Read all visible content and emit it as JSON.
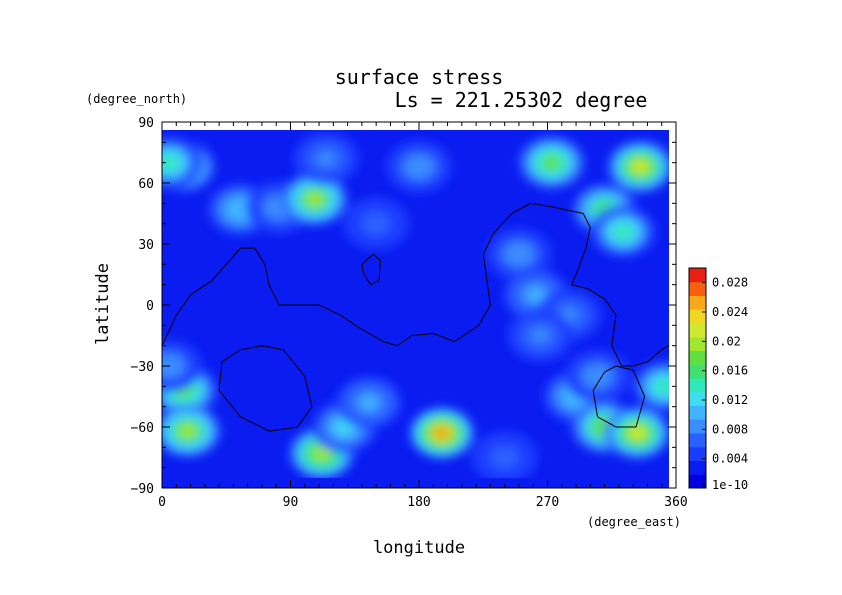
{
  "chart_data": {
    "type": "heatmap",
    "title": "surface stress",
    "subtitle": "Ls = 221.25302 degree",
    "xlabel": "longitude",
    "ylabel": "latitude",
    "x_units": "(degree_east)",
    "y_units": "(degree_north)",
    "xlim": [
      0,
      360
    ],
    "ylim": [
      -90,
      90
    ],
    "x_ticks": [
      0,
      90,
      180,
      270,
      360
    ],
    "y_ticks": [
      -90,
      -60,
      -30,
      0,
      30,
      60,
      90
    ],
    "grid": false,
    "legend": "colorbar-right",
    "colorbar": {
      "min": 0,
      "max": 0.03,
      "labels": [
        "1e-10",
        "0.004",
        "0.008",
        "0.012",
        "0.016",
        "0.02",
        "0.024",
        "0.028"
      ],
      "label_values": [
        0,
        0.004,
        0.008,
        0.012,
        0.016,
        0.02,
        0.024,
        0.028
      ],
      "colors": [
        "#0000e0",
        "#0a1cf0",
        "#1a3cff",
        "#2a60ff",
        "#3a8cff",
        "#40b4ff",
        "#40dcf0",
        "#30e8b8",
        "#40e070",
        "#60e040",
        "#a0e830",
        "#d0e830",
        "#f0d820",
        "#f8a818",
        "#f86010",
        "#e82010"
      ]
    },
    "background_value": 0.003,
    "features": [
      {
        "lon": 15,
        "lat": 68,
        "value": 0.015
      },
      {
        "lon": 5,
        "lat": 70,
        "value": 0.014
      },
      {
        "lon": 55,
        "lat": 47,
        "value": 0.011
      },
      {
        "lon": 82,
        "lat": 48,
        "value": 0.009
      },
      {
        "lon": 107,
        "lat": 52,
        "value": 0.019
      },
      {
        "lon": 115,
        "lat": 72,
        "value": 0.008
      },
      {
        "lon": 150,
        "lat": 40,
        "value": 0.007
      },
      {
        "lon": 180,
        "lat": 68,
        "value": 0.009
      },
      {
        "lon": 273,
        "lat": 70,
        "value": 0.017
      },
      {
        "lon": 335,
        "lat": 68,
        "value": 0.022
      },
      {
        "lon": 310,
        "lat": 47,
        "value": 0.016
      },
      {
        "lon": 323,
        "lat": 36,
        "value": 0.014
      },
      {
        "lon": 250,
        "lat": 25,
        "value": 0.009
      },
      {
        "lon": 262,
        "lat": 5,
        "value": 0.01
      },
      {
        "lon": 285,
        "lat": -5,
        "value": 0.008
      },
      {
        "lon": 265,
        "lat": -15,
        "value": 0.008
      },
      {
        "lon": 15,
        "lat": -42,
        "value": 0.017
      },
      {
        "lon": 18,
        "lat": -62,
        "value": 0.019
      },
      {
        "lon": 5,
        "lat": -30,
        "value": 0.009
      },
      {
        "lon": 112,
        "lat": -73,
        "value": 0.02
      },
      {
        "lon": 128,
        "lat": -60,
        "value": 0.013
      },
      {
        "lon": 145,
        "lat": -48,
        "value": 0.01
      },
      {
        "lon": 196,
        "lat": -63,
        "value": 0.025
      },
      {
        "lon": 240,
        "lat": -75,
        "value": 0.007
      },
      {
        "lon": 290,
        "lat": -45,
        "value": 0.011
      },
      {
        "lon": 310,
        "lat": -60,
        "value": 0.018
      },
      {
        "lon": 333,
        "lat": -63,
        "value": 0.021
      },
      {
        "lon": 352,
        "lat": -40,
        "value": 0.014
      },
      {
        "lon": 305,
        "lat": -35,
        "value": 0.009
      }
    ],
    "contours": [
      [
        [
          0,
          -20
        ],
        [
          10,
          -5
        ],
        [
          20,
          5
        ],
        [
          35,
          12
        ],
        [
          45,
          20
        ],
        [
          55,
          28
        ],
        [
          65,
          28
        ],
        [
          72,
          20
        ],
        [
          75,
          10
        ],
        [
          82,
          0
        ],
        [
          95,
          0
        ],
        [
          110,
          0
        ],
        [
          125,
          -5
        ],
        [
          140,
          -12
        ],
        [
          155,
          -18
        ],
        [
          165,
          -20
        ],
        [
          175,
          -15
        ],
        [
          190,
          -14
        ],
        [
          205,
          -18
        ],
        [
          222,
          -10
        ],
        [
          230,
          0
        ],
        [
          228,
          10
        ],
        [
          225,
          25
        ],
        [
          232,
          35
        ],
        [
          245,
          45
        ],
        [
          258,
          50
        ],
        [
          275,
          48
        ],
        [
          295,
          45
        ],
        [
          300,
          38
        ],
        [
          297,
          28
        ],
        [
          290,
          15
        ],
        [
          287,
          10
        ],
        [
          298,
          8
        ],
        [
          310,
          3
        ],
        [
          318,
          -5
        ],
        [
          315,
          -20
        ],
        [
          322,
          -30
        ],
        [
          330,
          -30
        ],
        [
          340,
          -28
        ],
        [
          350,
          -22
        ],
        [
          360,
          -18
        ]
      ],
      [
        [
          70,
          -20
        ],
        [
          85,
          -22
        ],
        [
          100,
          -35
        ],
        [
          105,
          -50
        ],
        [
          95,
          -60
        ],
        [
          75,
          -62
        ],
        [
          55,
          -55
        ],
        [
          40,
          -42
        ],
        [
          42,
          -28
        ],
        [
          55,
          -22
        ],
        [
          70,
          -20
        ]
      ],
      [
        [
          140,
          20
        ],
        [
          148,
          25
        ],
        [
          153,
          22
        ],
        [
          152,
          12
        ],
        [
          146,
          10
        ],
        [
          141,
          16
        ],
        [
          140,
          20
        ]
      ],
      [
        [
          318,
          -30
        ],
        [
          330,
          -32
        ],
        [
          338,
          -45
        ],
        [
          332,
          -60
        ],
        [
          318,
          -60
        ],
        [
          305,
          -55
        ],
        [
          302,
          -42
        ],
        [
          310,
          -33
        ],
        [
          318,
          -30
        ]
      ]
    ]
  }
}
